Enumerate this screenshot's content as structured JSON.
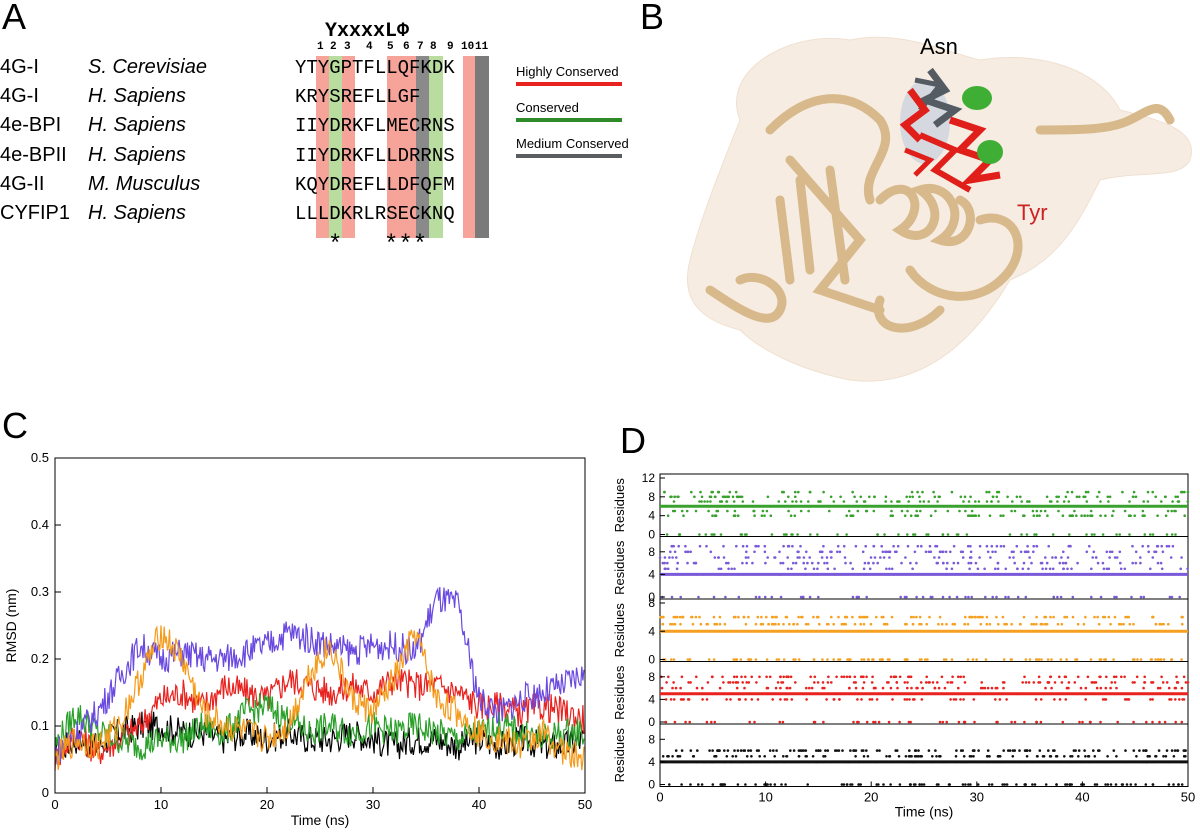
{
  "panels": {
    "a": "A",
    "b": "B",
    "c": "C",
    "d": "D"
  },
  "alignment": {
    "motif": "YxxxxLΦ",
    "positions": [
      "1",
      "2",
      "3",
      "4",
      "5",
      "6",
      "7",
      "8",
      "9",
      "10",
      "11"
    ],
    "rows": [
      {
        "protein": "4G-I",
        "species": "S. Cerevisiae",
        "sequence": "YTYGPTFLLQFKDK"
      },
      {
        "protein": "4G-I",
        "species": "H. Sapiens",
        "sequence": "KRYSREFLLGF"
      },
      {
        "protein": "4e-BPI",
        "species": "H. Sapiens",
        "sequence": "IIYDRKFLMECRNS"
      },
      {
        "protein": "4e-BPII",
        "species": "H. Sapiens",
        "sequence": "IIYDRKFLLDRRNS"
      },
      {
        "protein": "4G-II",
        "species": "M. Musculus",
        "sequence": "KQYDREFLLDFQFM"
      },
      {
        "protein": "CYFIP1",
        "species": "H. Sapiens",
        "sequence": "LLLDKRLRSECKNQ"
      }
    ],
    "stars1": "*",
    "stars2": "***",
    "legend": [
      {
        "label": "Highly Conserved",
        "color": "#e8221f"
      },
      {
        "label": "Conserved",
        "color": "#2f8a2a"
      },
      {
        "label": "Medium Conserved",
        "color": "#5a5d60"
      }
    ],
    "colors": {
      "red": "#f6a399",
      "green": "#b8dd9e",
      "grey": "#7a7a7a"
    }
  },
  "structure": {
    "label_asn": "Asn",
    "label_tyr": "Tyr",
    "asn_color": "#555b63",
    "tyr_color": "#cc2222"
  },
  "chart_data": [
    {
      "type": "line",
      "xlabel": "Time (ns)",
      "ylabel": "RMSD (nm)",
      "xlim": [
        0,
        50
      ],
      "ylim": [
        0,
        0.5
      ],
      "xticks": [
        "0",
        "10",
        "20",
        "30",
        "40",
        "50"
      ],
      "yticks": [
        "0",
        "0.1",
        "0.2",
        "0.3",
        "0.4",
        "0.5"
      ],
      "series": [
        {
          "color": "#000000",
          "x": [
            0,
            2,
            4,
            6,
            8,
            10,
            12,
            14,
            16,
            18,
            20,
            22,
            24,
            26,
            28,
            30,
            32,
            34,
            36,
            38,
            40,
            42,
            44,
            46,
            48,
            50
          ],
          "values": [
            0.06,
            0.08,
            0.07,
            0.09,
            0.1,
            0.1,
            0.09,
            0.09,
            0.08,
            0.09,
            0.08,
            0.09,
            0.08,
            0.08,
            0.09,
            0.08,
            0.07,
            0.08,
            0.08,
            0.07,
            0.08,
            0.07,
            0.08,
            0.07,
            0.07,
            0.08
          ]
        },
        {
          "color": "#e8221f",
          "x": [
            0,
            2,
            4,
            6,
            8,
            10,
            12,
            14,
            16,
            18,
            20,
            22,
            24,
            26,
            28,
            30,
            32,
            34,
            36,
            38,
            40,
            42,
            44,
            46,
            48,
            50
          ],
          "values": [
            0.05,
            0.09,
            0.06,
            0.08,
            0.1,
            0.14,
            0.15,
            0.13,
            0.16,
            0.15,
            0.14,
            0.17,
            0.16,
            0.15,
            0.16,
            0.15,
            0.17,
            0.16,
            0.16,
            0.15,
            0.13,
            0.13,
            0.12,
            0.13,
            0.12,
            0.11
          ]
        },
        {
          "color": "#2aa02a",
          "x": [
            0,
            2,
            4,
            6,
            8,
            10,
            12,
            14,
            16,
            18,
            20,
            22,
            24,
            26,
            28,
            30,
            32,
            34,
            36,
            38,
            40,
            42,
            44,
            46,
            48,
            50
          ],
          "values": [
            0.07,
            0.12,
            0.09,
            0.08,
            0.07,
            0.08,
            0.08,
            0.1,
            0.09,
            0.12,
            0.13,
            0.11,
            0.09,
            0.1,
            0.09,
            0.1,
            0.09,
            0.1,
            0.09,
            0.08,
            0.09,
            0.1,
            0.09,
            0.08,
            0.09,
            0.09
          ]
        },
        {
          "color": "#6a49e0",
          "x": [
            0,
            2,
            4,
            6,
            8,
            10,
            12,
            14,
            16,
            18,
            20,
            22,
            24,
            26,
            28,
            30,
            32,
            34,
            36,
            38,
            40,
            42,
            44,
            46,
            48,
            50
          ],
          "values": [
            0.06,
            0.09,
            0.12,
            0.17,
            0.22,
            0.2,
            0.21,
            0.2,
            0.2,
            0.21,
            0.22,
            0.24,
            0.23,
            0.22,
            0.21,
            0.22,
            0.22,
            0.21,
            0.29,
            0.28,
            0.14,
            0.12,
            0.14,
            0.15,
            0.16,
            0.18
          ]
        },
        {
          "color": "#f59b1c",
          "x": [
            0,
            2,
            4,
            6,
            8,
            10,
            12,
            14,
            16,
            18,
            20,
            22,
            24,
            26,
            28,
            30,
            32,
            34,
            36,
            38,
            40,
            42,
            44,
            46,
            48,
            50
          ],
          "values": [
            0.05,
            0.08,
            0.07,
            0.1,
            0.17,
            0.24,
            0.2,
            0.12,
            0.1,
            0.09,
            0.08,
            0.1,
            0.18,
            0.22,
            0.14,
            0.12,
            0.17,
            0.24,
            0.14,
            0.12,
            0.09,
            0.08,
            0.07,
            0.09,
            0.06,
            0.05
          ]
        }
      ]
    },
    {
      "type": "scatter",
      "xlabel": "Time (ns)",
      "ylabel": "Residues",
      "xlim": [
        0,
        50
      ],
      "xticks": [
        "0",
        "10",
        "20",
        "30",
        "40",
        "50"
      ],
      "tracks": [
        {
          "color": "#39a12d",
          "ymax": 12,
          "yticks": [
            "0",
            "4",
            "8",
            "12"
          ],
          "baseline": 6,
          "levels": [
            0,
            4,
            5,
            6,
            7,
            8,
            9
          ]
        },
        {
          "color": "#7a5ad8",
          "ymax": 10,
          "yticks": [
            "0",
            "4",
            "8"
          ],
          "baseline": 4,
          "levels": [
            0,
            4,
            5,
            6,
            7,
            8,
            9
          ]
        },
        {
          "color": "#f5a020",
          "ymax": 8,
          "yticks": [
            "0",
            "4",
            "8"
          ],
          "baseline": 4,
          "levels": [
            0,
            4,
            5,
            6
          ]
        },
        {
          "color": "#e8221f",
          "ymax": 10,
          "yticks": [
            "0",
            "4",
            "8"
          ],
          "baseline": 5,
          "levels": [
            0,
            4,
            5,
            6,
            7,
            8
          ]
        },
        {
          "color": "#111111",
          "ymax": 10,
          "yticks": [
            "0",
            "4",
            "8"
          ],
          "baseline": 4,
          "levels": [
            0,
            4,
            5,
            6
          ]
        }
      ]
    }
  ]
}
